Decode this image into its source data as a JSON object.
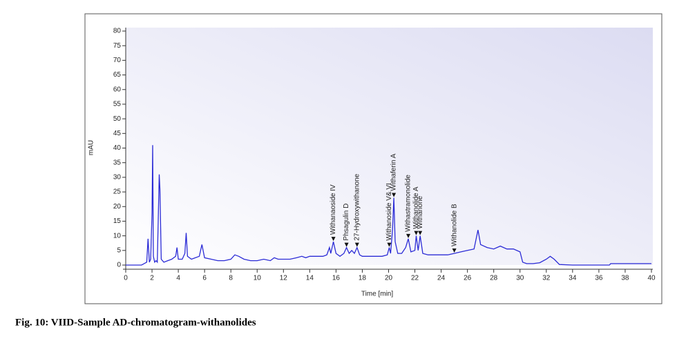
{
  "chart_data": {
    "type": "line",
    "xlabel": "Time [min]",
    "ylabel": "mAU",
    "caption": "Fig. 10: VIID-Sample AD-chromatogram-withanolides",
    "color": "#2b2bd6",
    "x": [
      0,
      1.2,
      1.4,
      1.6,
      1.7,
      1.8,
      1.9,
      2.0,
      2.05,
      2.1,
      2.2,
      2.3,
      2.4,
      2.55,
      2.6,
      2.7,
      2.9,
      3.2,
      3.5,
      3.8,
      3.9,
      4.0,
      4.3,
      4.5,
      4.6,
      4.7,
      5.0,
      5.3,
      5.6,
      5.8,
      6.0,
      6.5,
      7.0,
      7.5,
      8.0,
      8.3,
      8.6,
      9.0,
      9.5,
      10,
      10.5,
      11,
      11.3,
      11.6,
      12,
      12.5,
      13,
      13.4,
      13.7,
      14,
      14.5,
      15,
      15.3,
      15.5,
      15.6,
      15.8,
      16,
      16.3,
      16.6,
      16.8,
      17,
      17.2,
      17.4,
      17.6,
      17.8,
      18,
      18.5,
      19,
      19.5,
      19.9,
      20.05,
      20.15,
      20.3,
      20.4,
      20.5,
      20.7,
      21,
      21.3,
      21.5,
      21.7,
      22,
      22.1,
      22.25,
      22.4,
      22.6,
      23,
      23.5,
      24,
      24.5,
      25,
      25.5,
      26,
      26.5,
      26.8,
      27,
      27.5,
      28,
      28.5,
      29,
      29.5,
      30,
      30.2,
      30.5,
      31,
      31.5,
      32,
      32.3,
      32.6,
      33,
      34,
      36.8,
      36.9,
      40
    ],
    "values": [
      0,
      0,
      0.5,
      1,
      9,
      1,
      2,
      18,
      41,
      3,
      1,
      1.5,
      1,
      31,
      26,
      2,
      1,
      1.5,
      2,
      3,
      6,
      2,
      2,
      4,
      11,
      3,
      2,
      2.5,
      3,
      7,
      2.5,
      2,
      1.5,
      1.5,
      2,
      3.5,
      3,
      2,
      1.5,
      1.5,
      2,
      1.5,
      2.5,
      2,
      2,
      2,
      2.5,
      3,
      2.5,
      3,
      3,
      3,
      3.5,
      6,
      4,
      8,
      4,
      3,
      4,
      6,
      4,
      5,
      4,
      6,
      3.5,
      3,
      3,
      3,
      3,
      3.5,
      6,
      4,
      12,
      23,
      8,
      4,
      4,
      6,
      9,
      4.5,
      5,
      10,
      5,
      10,
      4,
      3.5,
      3.5,
      3.5,
      3.5,
      4,
      4.5,
      5,
      5.5,
      12,
      7,
      6,
      5.5,
      6.5,
      5.5,
      5.5,
      4.5,
      1,
      0.5,
      0.5,
      0.8,
      2,
      3,
      2,
      0.2,
      0,
      0,
      0.5,
      0.5
    ],
    "xlim": [
      0,
      40
    ],
    "ylim": [
      0,
      80
    ],
    "xticks": [
      0,
      2,
      4,
      6,
      8,
      10,
      12,
      14,
      16,
      18,
      20,
      22,
      24,
      26,
      28,
      30,
      32,
      34,
      36,
      38,
      40
    ],
    "yticks": [
      0,
      5,
      10,
      15,
      20,
      25,
      30,
      35,
      40,
      45,
      50,
      55,
      60,
      65,
      70,
      75,
      80
    ],
    "annotations": [
      {
        "text": "Withanaoside IV",
        "x": 15.8,
        "y": 8
      },
      {
        "text": "Phsagulin D",
        "x": 16.8,
        "y": 6
      },
      {
        "text": "27-Hydroxywithanone",
        "x": 17.6,
        "y": 6
      },
      {
        "text": "Withanoside V& VI",
        "x": 20.05,
        "y": 6
      },
      {
        "text": "Withaferin A",
        "x": 20.4,
        "y": 23
      },
      {
        "text": "Withastramonolide",
        "x": 21.5,
        "y": 9
      },
      {
        "text": "Withanolide A",
        "x": 22.1,
        "y": 10
      },
      {
        "text": "Withanone",
        "x": 22.4,
        "y": 10
      },
      {
        "text": "Withanolide B",
        "x": 25,
        "y": 4
      }
    ]
  }
}
